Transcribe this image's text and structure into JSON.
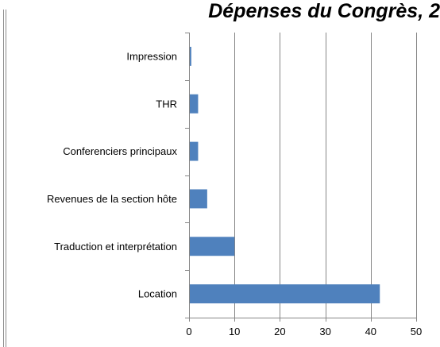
{
  "chart_data": {
    "type": "bar",
    "orientation": "horizontal",
    "title": "Dépenses du Congrès, 2",
    "categories": [
      "Location",
      "Traduction et interprétation",
      "Revenues de la section hôte",
      "Conferenciers principaux",
      "THR",
      "Impression"
    ],
    "series": [
      {
        "values": [
          42,
          10,
          4,
          2,
          2,
          0.5
        ]
      }
    ],
    "xlim": [
      0,
      50
    ],
    "xticks": [
      0,
      10,
      20,
      30,
      40,
      50
    ],
    "grid": true,
    "legend": "none",
    "bar_color": "#4f81bd"
  }
}
